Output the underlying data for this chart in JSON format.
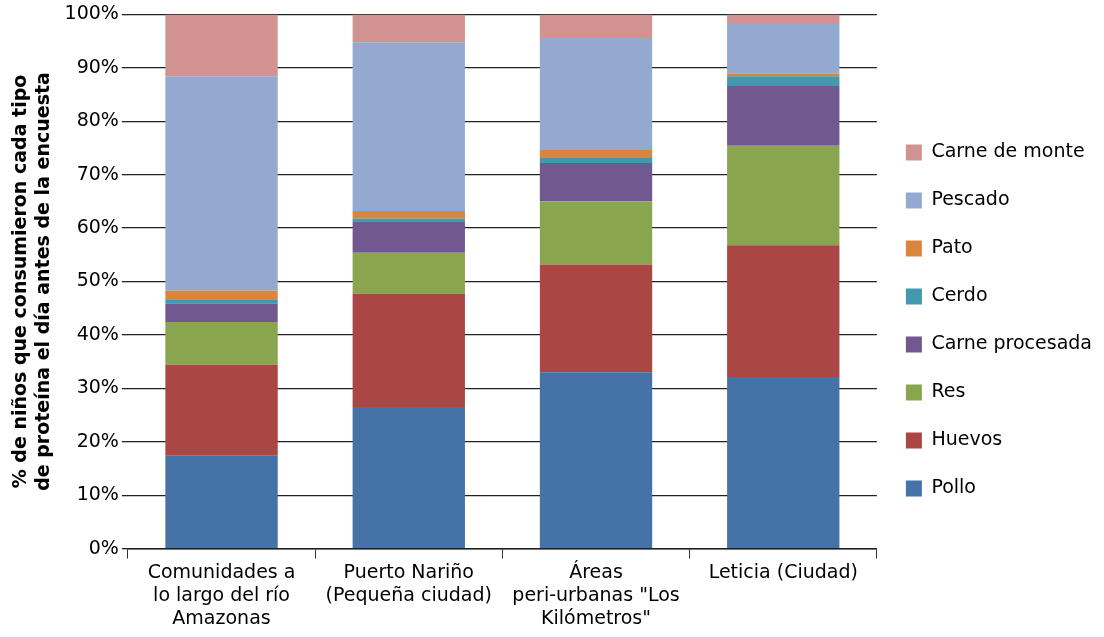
{
  "chart_data": {
    "type": "bar",
    "stacked": true,
    "ylabel": "% de niños que consumieron cada tipo de proteína el día antes de la encuesta",
    "categories": [
      "Comunidades a lo largo del río Amazonas",
      "Puerto Nariño (Pequeña ciudad)",
      "Áreas peri-urbanas \"Los Kilómetros\"",
      "Leticia (Ciudad)"
    ],
    "series": [
      {
        "name": "Pollo",
        "color": "#4572a7",
        "values": [
          17.4,
          26.5,
          33.0,
          32.1
        ]
      },
      {
        "name": "Huevos",
        "color": "#aa4643",
        "values": [
          17.0,
          21.2,
          20.2,
          24.7
        ]
      },
      {
        "name": "Res",
        "color": "#89a54e",
        "values": [
          8.0,
          7.7,
          11.8,
          18.6
        ]
      },
      {
        "name": "Carne procesada",
        "color": "#71588f",
        "values": [
          3.5,
          5.9,
          7.2,
          11.2
        ]
      },
      {
        "name": "Cerdo",
        "color": "#4198af",
        "values": [
          0.8,
          0.5,
          0.9,
          1.8
        ]
      },
      {
        "name": "Pato",
        "color": "#db843d",
        "values": [
          1.6,
          1.4,
          1.5,
          0.5
        ]
      },
      {
        "name": "Pescado",
        "color": "#93a9cf",
        "values": [
          40.1,
          31.6,
          21.0,
          9.3
        ]
      },
      {
        "name": "Carne de monte",
        "color": "#d19392",
        "values": [
          11.6,
          5.2,
          4.4,
          1.8
        ]
      }
    ],
    "ylim": [
      0,
      100
    ],
    "yticks": [
      {
        "value": 0,
        "label": "0%"
      },
      {
        "value": 10,
        "label": "10%"
      },
      {
        "value": 20,
        "label": "20%"
      },
      {
        "value": 30,
        "label": "30%"
      },
      {
        "value": 40,
        "label": "40%"
      },
      {
        "value": 50,
        "label": "50%"
      },
      {
        "value": 60,
        "label": "60%"
      },
      {
        "value": 70,
        "label": "70%"
      },
      {
        "value": 80,
        "label": "80%"
      },
      {
        "value": 90,
        "label": "90%"
      },
      {
        "value": 100,
        "label": "100%"
      }
    ],
    "grid": "y",
    "legend": "right"
  }
}
